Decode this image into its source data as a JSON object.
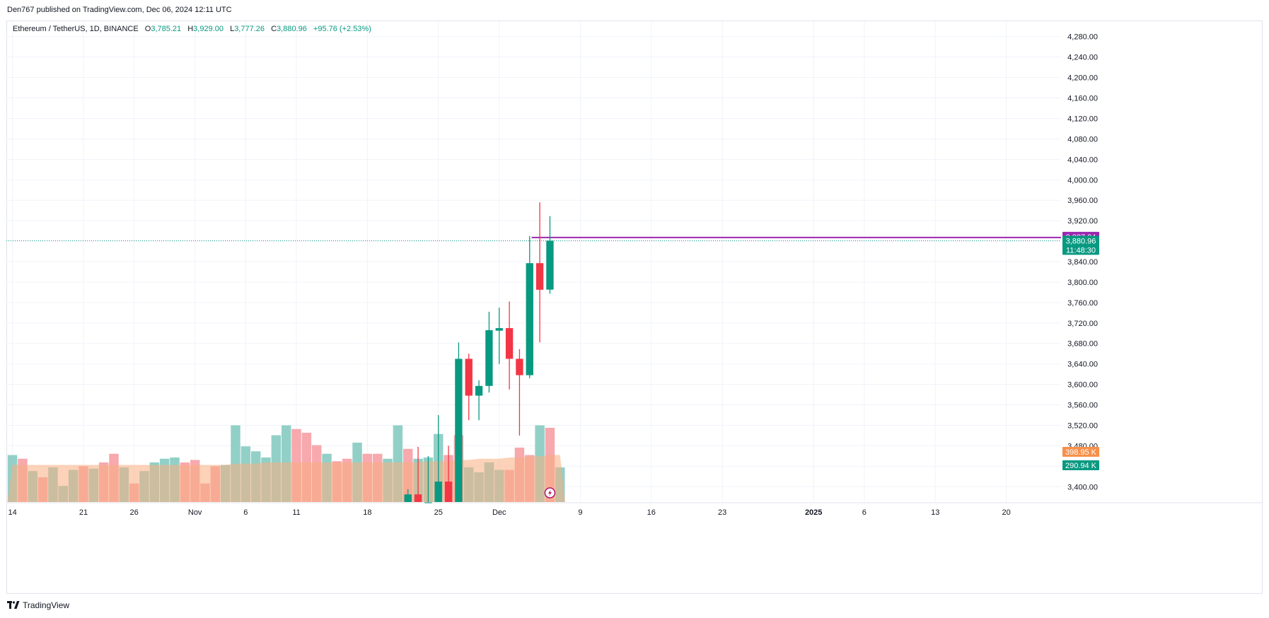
{
  "header": {
    "publish_text": "Den767 published on TradingView.com, Dec 06, 2024 12:11 UTC"
  },
  "legend": {
    "symbol_text": "Ethereum / TetherUS, 1D, BINANCE",
    "o_label": "O",
    "o_value": "3,785.21",
    "h_label": "H",
    "h_value": "3,929.00",
    "l_label": "L",
    "l_value": "3,777.26",
    "c_label": "C",
    "c_value": "3,880.96",
    "change": "+95.76 (+2.53%)"
  },
  "footer": {
    "brand": "TradingView"
  },
  "colors": {
    "up": "#089981",
    "down": "#f23645",
    "up_volume": "#92d0c7",
    "down_volume": "#f7a9ad",
    "volume_ma_fill": "#f9ad80",
    "alert_line": "#9c27b0",
    "volume_tag_orange": "#f7904a",
    "grid": "#f0f3fa"
  },
  "chart_data": {
    "type": "candlestick",
    "symbol": "Ethereum / TetherUS, 1D, BINANCE",
    "ylim": [
      3370,
      4310
    ],
    "y_ticks": [
      "3,400.00",
      "3,440.00",
      "3,480.00",
      "3,520.00",
      "3,560.00",
      "3,600.00",
      "3,640.00",
      "3,680.00",
      "3,720.00",
      "3,760.00",
      "3,800.00",
      "3,840.00",
      "3,880.00",
      "3,920.00",
      "3,960.00",
      "4,000.00",
      "4,040.00",
      "4,080.00",
      "4,120.00",
      "4,160.00",
      "4,200.00",
      "4,240.00",
      "4,280.00"
    ],
    "x_ticks": [
      {
        "label": "14",
        "day": 0
      },
      {
        "label": "21",
        "day": 7
      },
      {
        "label": "26",
        "day": 12
      },
      {
        "label": "Nov",
        "day": 18
      },
      {
        "label": "6",
        "day": 23
      },
      {
        "label": "11",
        "day": 28
      },
      {
        "label": "18",
        "day": 35
      },
      {
        "label": "25",
        "day": 42
      },
      {
        "label": "Dec",
        "day": 48
      },
      {
        "label": "9",
        "day": 56
      },
      {
        "label": "16",
        "day": 63
      },
      {
        "label": "23",
        "day": 70
      },
      {
        "label": "2025",
        "day": 79,
        "bold": true
      },
      {
        "label": "6",
        "day": 84
      },
      {
        "label": "13",
        "day": 91
      },
      {
        "label": "20",
        "day": 98
      }
    ],
    "x_range_days": [
      -0.6,
      103.4
    ],
    "candles": [
      {
        "day": 39,
        "o": 3370,
        "h": 3395,
        "l": 3370,
        "c": 3385
      },
      {
        "day": 40,
        "o": 3385,
        "h": 3478,
        "l": 3370,
        "c": 3370
      },
      {
        "day": 41,
        "o": 3370,
        "h": 3460,
        "l": 3370,
        "c": 3370
      },
      {
        "day": 42,
        "o": 3370,
        "h": 3540,
        "l": 3370,
        "c": 3410
      },
      {
        "day": 43,
        "o": 3410,
        "h": 3480,
        "l": 3370,
        "c": 3370
      },
      {
        "day": 44,
        "o": 3370,
        "h": 3682,
        "l": 3370,
        "c": 3650
      },
      {
        "day": 45,
        "o": 3650,
        "h": 3660,
        "l": 3530,
        "c": 3578
      },
      {
        "day": 46,
        "o": 3578,
        "h": 3608,
        "l": 3530,
        "c": 3597
      },
      {
        "day": 47,
        "o": 3597,
        "h": 3742,
        "l": 3584,
        "c": 3706
      },
      {
        "day": 48,
        "o": 3705,
        "h": 3750,
        "l": 3640,
        "c": 3710
      },
      {
        "day": 49,
        "o": 3710,
        "h": 3762,
        "l": 3590,
        "c": 3650
      },
      {
        "day": 50,
        "o": 3650,
        "h": 3669,
        "l": 3500,
        "c": 3618
      },
      {
        "day": 51,
        "o": 3618,
        "h": 3890,
        "l": 3612,
        "c": 3837
      },
      {
        "day": 52,
        "o": 3837,
        "h": 3956,
        "l": 3682,
        "c": 3785
      },
      {
        "day": 53,
        "o": 3785.21,
        "h": 3929.0,
        "l": 3777.26,
        "c": 3880.96
      }
    ],
    "volume_bars_pct": [
      38,
      35,
      25,
      20,
      28,
      13,
      26,
      29,
      27,
      32,
      39,
      28,
      15,
      25,
      32,
      35,
      36,
      32,
      34,
      15,
      29,
      30,
      62,
      45,
      41,
      36,
      54,
      62,
      59,
      56,
      46,
      39,
      33,
      35,
      48,
      39,
      39,
      35,
      62,
      43,
      35,
      36,
      55,
      38,
      54,
      28,
      24,
      32,
      26,
      26,
      44,
      38,
      62,
      60,
      28
    ],
    "volume_up": [
      true,
      false,
      true,
      false,
      true,
      true,
      true,
      false,
      true,
      false,
      false,
      true,
      false,
      true,
      true,
      true,
      true,
      false,
      false,
      false,
      false,
      true,
      true,
      true,
      true,
      true,
      true,
      true,
      false,
      false,
      false,
      true,
      false,
      false,
      true,
      false,
      false,
      true,
      true,
      false,
      true,
      true,
      true,
      false,
      false,
      true,
      true,
      true,
      true,
      false,
      false,
      false,
      true,
      false,
      true
    ],
    "volume_ma_pct": [
      30,
      30,
      30,
      30,
      30,
      30,
      30,
      30,
      30,
      30,
      30,
      30,
      30,
      30,
      30,
      30,
      30,
      30,
      30,
      30,
      30,
      30,
      31,
      31,
      31,
      32,
      32,
      32,
      32,
      32,
      32,
      32,
      32,
      32,
      32,
      32,
      32,
      32,
      32,
      32,
      32,
      33,
      33,
      33,
      34,
      34,
      35,
      35,
      35,
      36,
      36,
      37,
      37,
      38,
      38
    ],
    "last_price": 3880.96,
    "last_price_label": "3,880.96",
    "countdown_label": "11:48:30",
    "alert_price": 3887.24,
    "alert_label": "3,887.24",
    "volume_ma_label": "398.95 K",
    "volume_label": "290.94 K"
  }
}
